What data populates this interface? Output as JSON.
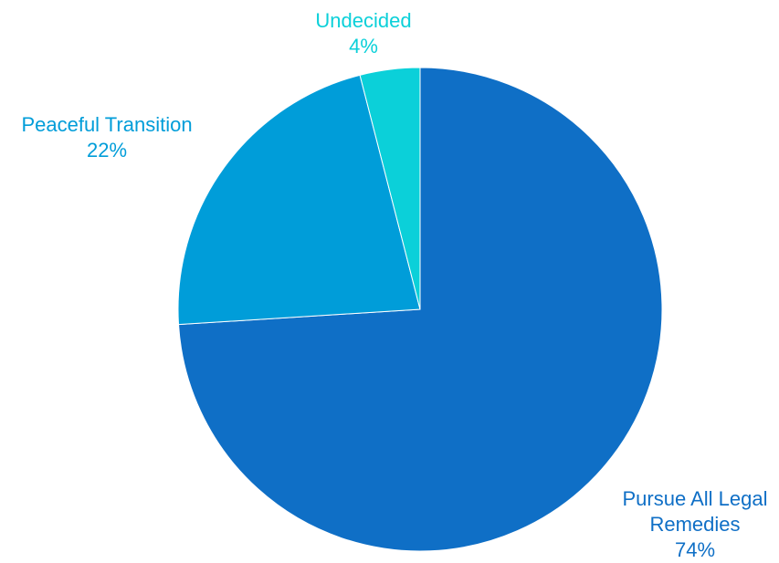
{
  "chart_data": {
    "type": "pie",
    "title": "",
    "legend": "none",
    "start_angle_deg": 0,
    "direction": "clockwise",
    "slices": [
      {
        "name": "Pursue All Legal Remedies",
        "value": 74,
        "value_label": "74%",
        "color": "#0f6fc6"
      },
      {
        "name": "Peaceful Transition",
        "value": 22,
        "value_label": "22%",
        "color": "#009dd9"
      },
      {
        "name": "Undecided",
        "value": 4,
        "value_label": "4%",
        "color": "#0bd0d9"
      }
    ]
  }
}
